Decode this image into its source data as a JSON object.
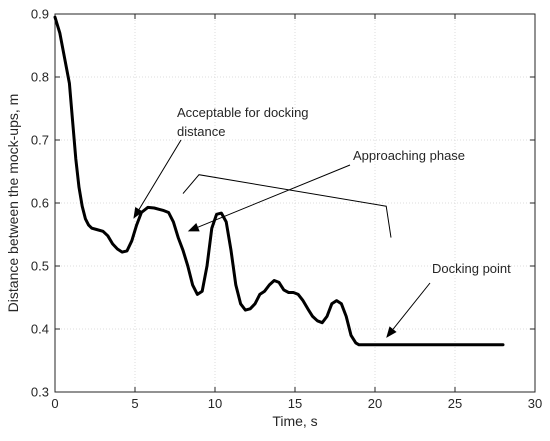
{
  "chart_data": {
    "type": "line",
    "title": "",
    "xlabel": "Time, s",
    "ylabel": "Distance between the mock-ups, m",
    "xlim": [
      0,
      30
    ],
    "ylim": [
      0.3,
      0.9
    ],
    "xticks": [
      0,
      5,
      10,
      15,
      20,
      25,
      30
    ],
    "yticks": [
      0.3,
      0.4,
      0.5,
      0.6,
      0.7,
      0.8,
      0.9
    ],
    "grid": true,
    "series": [
      {
        "x": [
          0,
          0.3,
          0.6,
          0.9,
          1.1,
          1.3,
          1.5,
          1.7,
          1.9,
          2.1,
          2.3,
          2.6,
          3.0,
          3.3,
          3.6,
          3.9,
          4.2,
          4.5,
          4.8,
          5.1,
          5.4,
          5.8,
          6.2,
          6.5,
          6.8,
          7.1,
          7.4,
          7.7,
          8.0,
          8.3,
          8.6,
          8.9,
          9.2,
          9.5,
          9.8,
          10.1,
          10.4,
          10.7,
          11.0,
          11.3,
          11.6,
          11.9,
          12.2,
          12.5,
          12.8,
          13.1,
          13.4,
          13.7,
          14.0,
          14.3,
          14.6,
          14.9,
          15.2,
          15.5,
          15.8,
          16.1,
          16.4,
          16.7,
          17.0,
          17.3,
          17.6,
          17.9,
          18.2,
          18.5,
          18.8,
          19.0,
          19.3,
          19.6,
          19.9,
          20.1,
          20.3,
          20.5,
          20.7,
          21.0,
          21.5,
          22.0,
          23.0,
          24.0,
          25.0,
          26.0,
          27.0,
          28.0
        ],
        "y": [
          0.895,
          0.87,
          0.83,
          0.79,
          0.73,
          0.67,
          0.625,
          0.595,
          0.575,
          0.565,
          0.56,
          0.558,
          0.555,
          0.548,
          0.535,
          0.527,
          0.522,
          0.524,
          0.54,
          0.565,
          0.585,
          0.593,
          0.592,
          0.59,
          0.588,
          0.585,
          0.57,
          0.545,
          0.525,
          0.5,
          0.47,
          0.455,
          0.46,
          0.5,
          0.56,
          0.582,
          0.584,
          0.57,
          0.525,
          0.47,
          0.44,
          0.43,
          0.432,
          0.44,
          0.455,
          0.46,
          0.47,
          0.477,
          0.474,
          0.462,
          0.458,
          0.458,
          0.455,
          0.445,
          0.432,
          0.42,
          0.413,
          0.41,
          0.42,
          0.44,
          0.445,
          0.44,
          0.42,
          0.39,
          0.378,
          0.375,
          0.375,
          0.375,
          0.375,
          0.375,
          0.375,
          0.375,
          0.375,
          0.375,
          0.375,
          0.375,
          0.375,
          0.375,
          0.375,
          0.375,
          0.375,
          0.375
        ]
      }
    ],
    "annotations": [
      {
        "lines": [
          "Acceptable for docking",
          "distance"
        ],
        "arrow_to": [
          4.9,
          0.575
        ],
        "text_anchor": [
          7.8,
          0.69
        ]
      },
      {
        "lines": [
          "Approaching phase"
        ],
        "arrow_to": [
          8.3,
          0.555
        ],
        "text_anchor": [
          19.5,
          0.663
        ]
      },
      {
        "lines": [
          "Docking point"
        ],
        "arrow_to": [
          20.7,
          0.386
        ],
        "text_anchor": [
          24.4,
          0.486
        ]
      }
    ],
    "bracket": [
      [
        8.0,
        0.615
      ],
      [
        9.0,
        0.645
      ],
      [
        20.7,
        0.595
      ],
      [
        21.0,
        0.545
      ]
    ]
  }
}
